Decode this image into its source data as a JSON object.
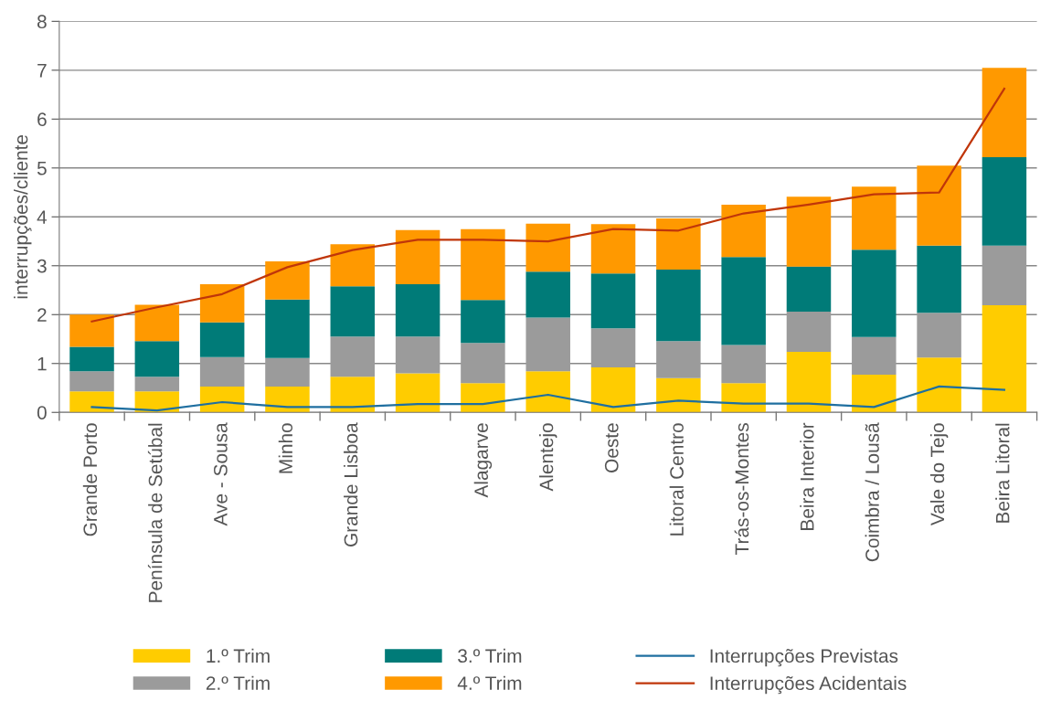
{
  "chart_data": {
    "type": "bar",
    "stacked": true,
    "ylabel": "interrupções/cliente",
    "categories": [
      "Grande Porto",
      "Península de Setúbal",
      "Ave - Sousa",
      "Minho",
      "Grande Lisboa",
      null,
      "Alagarve",
      "Alentejo",
      "Oeste",
      "Litoral Centro",
      "Trás-os-Montes",
      "Beira Interior",
      "Coimbra / Lousã",
      "Vale do Tejo",
      "Beira Litoral"
    ],
    "series": [
      {
        "name": "1.º Trim",
        "color": "#ffcc00",
        "values": [
          0.43,
          0.43,
          0.53,
          0.53,
          0.73,
          0.8,
          0.6,
          0.84,
          0.92,
          0.7,
          0.6,
          1.24,
          0.77,
          1.12,
          2.19
        ]
      },
      {
        "name": "2.º Trim",
        "color": "#9b9b9b",
        "values": [
          0.41,
          0.3,
          0.6,
          0.58,
          0.82,
          0.75,
          0.82,
          1.1,
          0.8,
          0.76,
          0.78,
          0.82,
          0.77,
          0.92,
          1.22
        ]
      },
      {
        "name": "3.º Trim",
        "color": "#007b78",
        "values": [
          0.5,
          0.73,
          0.71,
          1.2,
          1.03,
          1.07,
          0.88,
          0.94,
          1.12,
          1.46,
          1.8,
          0.92,
          1.79,
          1.37,
          1.81
        ]
      },
      {
        "name": "4.º Trim",
        "color": "#ff9900",
        "values": [
          0.66,
          0.74,
          0.78,
          0.78,
          0.86,
          1.11,
          1.45,
          0.98,
          1.01,
          1.05,
          1.07,
          1.43,
          1.29,
          1.64,
          1.83
        ]
      },
      {
        "name": "Interrupções Previstas",
        "type": "line",
        "color": "#1f6fa0",
        "values": [
          0.11,
          0.04,
          0.21,
          0.11,
          0.11,
          0.17,
          0.17,
          0.36,
          0.11,
          0.24,
          0.18,
          0.18,
          0.11,
          0.53,
          0.46
        ]
      },
      {
        "name": "Interrupções Acidentais",
        "type": "line",
        "color": "#c0360a",
        "values": [
          1.86,
          2.15,
          2.42,
          2.97,
          3.32,
          3.53,
          3.53,
          3.5,
          3.75,
          3.72,
          4.07,
          4.25,
          4.46,
          4.5,
          6.62
        ]
      }
    ],
    "ylim": [
      0,
      8
    ],
    "yticks": [
      0,
      1,
      2,
      3,
      4,
      5,
      6,
      7,
      8
    ],
    "grid": "y",
    "legend": "bottom",
    "marker": "none",
    "line_style": "solid"
  }
}
